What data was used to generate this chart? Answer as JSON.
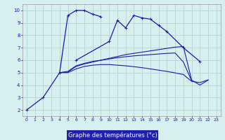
{
  "title": "",
  "xlabel": "Graphe des températures (°c)",
  "xlabel_bg": "#2020aa",
  "background_color": "#d6f0f0",
  "grid_color": "#b8d8d8",
  "line_color": "#1a1aaa",
  "x_ticks": [
    0,
    1,
    2,
    3,
    4,
    5,
    6,
    7,
    8,
    9,
    10,
    11,
    12,
    13,
    14,
    15,
    16,
    17,
    18,
    19,
    20,
    21,
    22,
    23
  ],
  "y_ticks": [
    2,
    3,
    4,
    5,
    6,
    7,
    8,
    9,
    10
  ],
  "ylim": [
    1.5,
    10.5
  ],
  "xlim": [
    -0.5,
    23.5
  ],
  "curve1_x": [
    0,
    2,
    4,
    5,
    6,
    7,
    8,
    9
  ],
  "curve1_y": [
    2.0,
    3.0,
    5.0,
    9.6,
    10.0,
    10.0,
    9.7,
    9.5
  ],
  "curve2_x": [
    6,
    10,
    11,
    12,
    13,
    14,
    15,
    16,
    17,
    19,
    21
  ],
  "curve2_y": [
    6.0,
    7.5,
    9.2,
    8.6,
    9.6,
    9.4,
    9.3,
    8.8,
    8.3,
    7.0,
    5.9
  ],
  "curve3_x": [
    4,
    5,
    6,
    7,
    8,
    9,
    10,
    11,
    12,
    13,
    14,
    15,
    16,
    17,
    18,
    19,
    20,
    21,
    22
  ],
  "curve3_y": [
    5.0,
    5.05,
    5.5,
    5.7,
    5.85,
    6.0,
    6.15,
    6.3,
    6.45,
    6.55,
    6.65,
    6.75,
    6.85,
    6.95,
    7.05,
    7.1,
    4.4,
    4.0,
    4.4
  ],
  "curve4_x": [
    4,
    5,
    6,
    7,
    8,
    9,
    10,
    11,
    12,
    13,
    14,
    15,
    16,
    17,
    18,
    19,
    20
  ],
  "curve4_y": [
    5.0,
    5.1,
    5.55,
    5.75,
    5.9,
    6.0,
    6.1,
    6.2,
    6.28,
    6.35,
    6.4,
    6.45,
    6.5,
    6.55,
    6.58,
    5.85,
    4.35
  ],
  "curve5_x": [
    4,
    5,
    6,
    7,
    8,
    9,
    10,
    11,
    12,
    13,
    14,
    15,
    16,
    17,
    18,
    19,
    20,
    21,
    22
  ],
  "curve5_y": [
    5.0,
    5.0,
    5.3,
    5.5,
    5.6,
    5.65,
    5.65,
    5.6,
    5.55,
    5.48,
    5.4,
    5.3,
    5.2,
    5.1,
    4.98,
    4.85,
    4.3,
    4.2,
    4.42
  ]
}
